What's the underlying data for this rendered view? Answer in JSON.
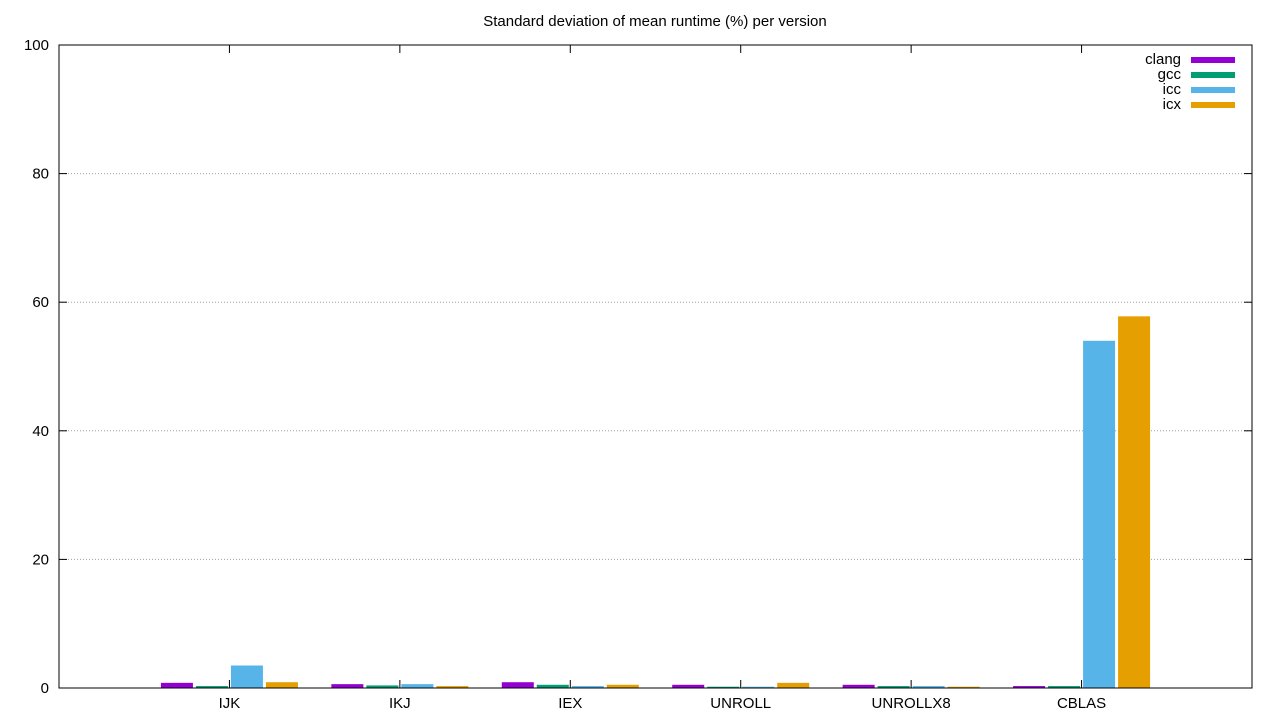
{
  "chart_data": {
    "type": "bar",
    "title": "Standard deviation of mean runtime (%) per version",
    "xlabel": "",
    "ylabel": "",
    "categories": [
      "IJK",
      "IKJ",
      "IEX",
      "UNROLL",
      "UNROLLX8",
      "CBLAS"
    ],
    "ylim": [
      0,
      100
    ],
    "yticks": [
      0,
      20,
      40,
      60,
      80,
      100
    ],
    "grid": true,
    "legend_position": "top-right",
    "series": [
      {
        "name": "clang",
        "color": "#9400d3",
        "values": [
          0.8,
          0.6,
          0.9,
          0.5,
          0.5,
          0.3
        ]
      },
      {
        "name": "gcc",
        "color": "#009e73",
        "values": [
          0.3,
          0.4,
          0.5,
          0.2,
          0.3,
          0.3
        ]
      },
      {
        "name": "icc",
        "color": "#56b4e9",
        "values": [
          3.5,
          0.6,
          0.3,
          0.2,
          0.3,
          54.0
        ]
      },
      {
        "name": "icx",
        "color": "#e69f00",
        "values": [
          0.9,
          0.3,
          0.5,
          0.8,
          0.2,
          57.8
        ]
      }
    ]
  }
}
